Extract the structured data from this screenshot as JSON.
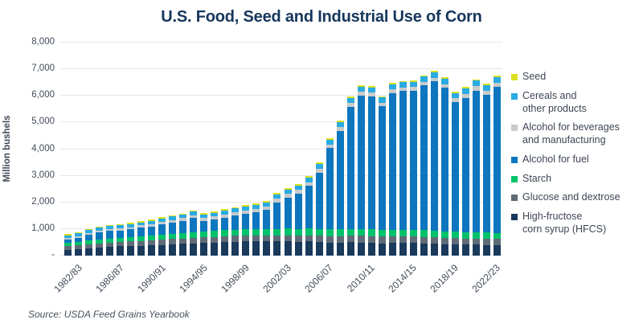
{
  "source_note": "Source: USDA Feed Grains Yearbook",
  "colors": {
    "title": "#16365c",
    "axis_text": "#414b59",
    "grid": "#e7e7e9",
    "background": "#ffffff"
  },
  "chart_data": {
    "type": "bar",
    "stacked": true,
    "title": "U.S. Food, Seed and Industrial Use of Corn",
    "xlabel": "",
    "ylabel": "Million bushels",
    "ylim": [
      0,
      8000
    ],
    "grid": "horizontal",
    "legend_position": "right",
    "categories": [
      "1982/83",
      "1983/84",
      "1984/85",
      "1985/86",
      "1986/87",
      "1987/88",
      "1988/89",
      "1989/90",
      "1990/91",
      "1991/92",
      "1992/93",
      "1993/94",
      "1994/95",
      "1995/96",
      "1996/97",
      "1997/98",
      "1998/99",
      "1999/00",
      "2000/01",
      "2001/02",
      "2002/03",
      "2003/04",
      "2004/05",
      "2005/06",
      "2006/07",
      "2007/08",
      "2008/09",
      "2009/10",
      "2010/11",
      "2011/12",
      "2012/13",
      "2013/14",
      "2014/15",
      "2015/16",
      "2016/17",
      "2017/18",
      "2018/19",
      "2019/20",
      "2020/21",
      "2021/22",
      "2022/23",
      "2023/24"
    ],
    "x_ticks": [
      {
        "index": 0,
        "label": "1982/83"
      },
      {
        "index": 4,
        "label": "1986/87"
      },
      {
        "index": 8,
        "label": "1990/91"
      },
      {
        "index": 12,
        "label": "1994/95"
      },
      {
        "index": 16,
        "label": "1998/99"
      },
      {
        "index": 20,
        "label": "2002/03"
      },
      {
        "index": 24,
        "label": "2006/07"
      },
      {
        "index": 28,
        "label": "2010/11"
      },
      {
        "index": 32,
        "label": "2014/15"
      },
      {
        "index": 36,
        "label": "2018/19"
      },
      {
        "index": 40,
        "label": "2022/23"
      }
    ],
    "y_ticks": [
      {
        "label": "8,000",
        "value": 8000
      },
      {
        "label": "7,000",
        "value": 7000
      },
      {
        "label": "6,000",
        "value": 6000
      },
      {
        "label": "5,000",
        "value": 5000
      },
      {
        "label": "4,000",
        "value": 4000
      },
      {
        "label": "3,000",
        "value": 3000
      },
      {
        "label": "2,000",
        "value": 2000
      },
      {
        "label": "1,000",
        "value": 1000
      },
      {
        "label": "-",
        "value": 0
      }
    ],
    "series": [
      {
        "name": "High-fructose corn syrup (HFCS)",
        "legend_label": "High-fructose\ncorn syrup (HFCS)",
        "color": "#1a3a5c",
        "values": [
          225,
          255,
          285,
          310,
          330,
          350,
          365,
          375,
          385,
          400,
          420,
          440,
          458,
          474,
          488,
          505,
          521,
          540,
          535,
          532,
          532,
          530,
          521,
          529,
          510,
          495,
          489,
          500,
          498,
          480,
          461,
          475,
          469,
          472,
          460,
          445,
          432,
          420,
          413,
          410,
          396,
          390
        ]
      },
      {
        "name": "Glucose and dextrose",
        "legend_label": "Glucose and dextrose",
        "color": "#5f6b77",
        "values": [
          140,
          146,
          152,
          158,
          164,
          170,
          176,
          182,
          188,
          194,
          200,
          205,
          210,
          214,
          218,
          221,
          224,
          227,
          230,
          232,
          234,
          236,
          238,
          240,
          242,
          244,
          246,
          248,
          250,
          250,
          250,
          250,
          248,
          246,
          244,
          242,
          240,
          238,
          236,
          234,
          232,
          230
        ]
      },
      {
        "name": "Starch",
        "legend_label": "Starch",
        "color": "#00c26a",
        "values": [
          110,
          118,
          126,
          134,
          142,
          150,
          158,
          166,
          174,
          182,
          190,
          198,
          206,
          214,
          220,
          226,
          230,
          234,
          238,
          242,
          246,
          248,
          250,
          252,
          254,
          252,
          250,
          252,
          254,
          252,
          250,
          252,
          254,
          252,
          250,
          248,
          246,
          244,
          242,
          240,
          238,
          236
        ]
      },
      {
        "name": "Alcohol for fuel",
        "legend_label": "Alcohol for fuel",
        "color": "#0d76bf",
        "values": [
          140,
          160,
          232,
          271,
          290,
          279,
          287,
          321,
          349,
          398,
          426,
          458,
          533,
          396,
          429,
          481,
          526,
          566,
          628,
          706,
          996,
          1168,
          1323,
          1603,
          2119,
          3049,
          3709,
          4591,
          5019,
          5000,
          4641,
          5124,
          5207,
          5224,
          5432,
          5605,
          5378,
          4852,
          5033,
          5320,
          5176,
          5478
        ]
      },
      {
        "name": "Alcohol for beverages and manufacturing",
        "legend_label": "Alcohol for beverages\nand manufacturing",
        "color": "#c8cacc",
        "values": [
          55,
          60,
          65,
          70,
          75,
          80,
          85,
          90,
          95,
          100,
          105,
          108,
          111,
          114,
          117,
          120,
          122,
          124,
          126,
          128,
          130,
          130,
          132,
          132,
          134,
          134,
          135,
          135,
          136,
          136,
          138,
          138,
          140,
          142,
          144,
          146,
          148,
          150,
          152,
          154,
          156,
          158
        ]
      },
      {
        "name": "Cereals and other products",
        "legend_label": "Cereals and\nother products",
        "color": "#29abe3",
        "values": [
          95,
          98,
          101,
          104,
          107,
          110,
          113,
          116,
          119,
          122,
          126,
          130,
          134,
          138,
          142,
          146,
          150,
          155,
          160,
          165,
          170,
          174,
          178,
          182,
          185,
          188,
          190,
          192,
          194,
          195,
          196,
          197,
          198,
          199,
          200,
          202,
          205,
          208,
          210,
          213,
          216,
          220
        ]
      },
      {
        "name": "Seed",
        "legend_label": "Seed",
        "color": "#d9e021",
        "values": [
          15,
          15,
          16,
          16,
          17,
          17,
          18,
          18,
          19,
          19,
          20,
          20,
          20,
          20,
          20,
          20,
          20,
          20,
          20,
          20,
          21,
          21,
          21,
          21,
          22,
          22,
          22,
          23,
          23,
          23,
          24,
          24,
          24,
          25,
          25,
          25,
          26,
          26,
          27,
          27,
          28,
          29
        ]
      }
    ]
  }
}
